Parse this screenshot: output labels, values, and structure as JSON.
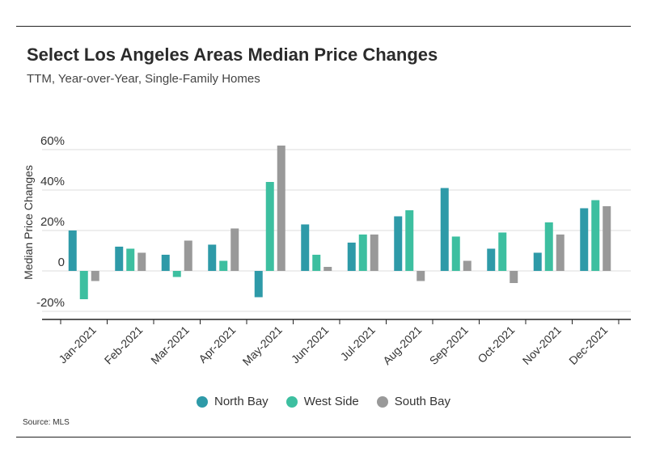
{
  "title": "Select Los Angeles Areas Median Price Changes",
  "subtitle": "TTM, Year-over-Year, Single-Family Homes",
  "source": "Source:  MLS",
  "chart_data": {
    "type": "bar",
    "title": "Select Los Angeles Areas Median Price Changes",
    "subtitle": "TTM, Year-over-Year, Single-Family Homes",
    "ylabel": "Median Price Changes",
    "xlabel": "",
    "ylim": [
      -20,
      60
    ],
    "yticks": [
      60,
      40,
      20,
      0,
      -20
    ],
    "ytick_labels": [
      "60%",
      "40%",
      "20%",
      "0",
      "-20%"
    ],
    "grid": true,
    "legend_position": "bottom",
    "categories": [
      "Jan-2021",
      "Feb-2021",
      "Mar-2021",
      "Apr-2021",
      "May-2021",
      "Jun-2021",
      "Jul-2021",
      "Aug-2021",
      "Sep-2021",
      "Oct-2021",
      "Nov-2021",
      "Dec-2021"
    ],
    "series": [
      {
        "name": "North Bay",
        "color": "#2e9aa8",
        "values": [
          20,
          12,
          8,
          13,
          -13,
          23,
          14,
          27,
          41,
          11,
          9,
          31
        ]
      },
      {
        "name": "West Side",
        "color": "#3dbfa0",
        "values": [
          -14,
          11,
          -3,
          5,
          44,
          8,
          18,
          30,
          17,
          19,
          24,
          35
        ]
      },
      {
        "name": "South Bay",
        "color": "#999999",
        "values": [
          -5,
          9,
          15,
          21,
          62,
          2,
          18,
          -5,
          5,
          -6,
          18,
          32
        ]
      }
    ]
  }
}
